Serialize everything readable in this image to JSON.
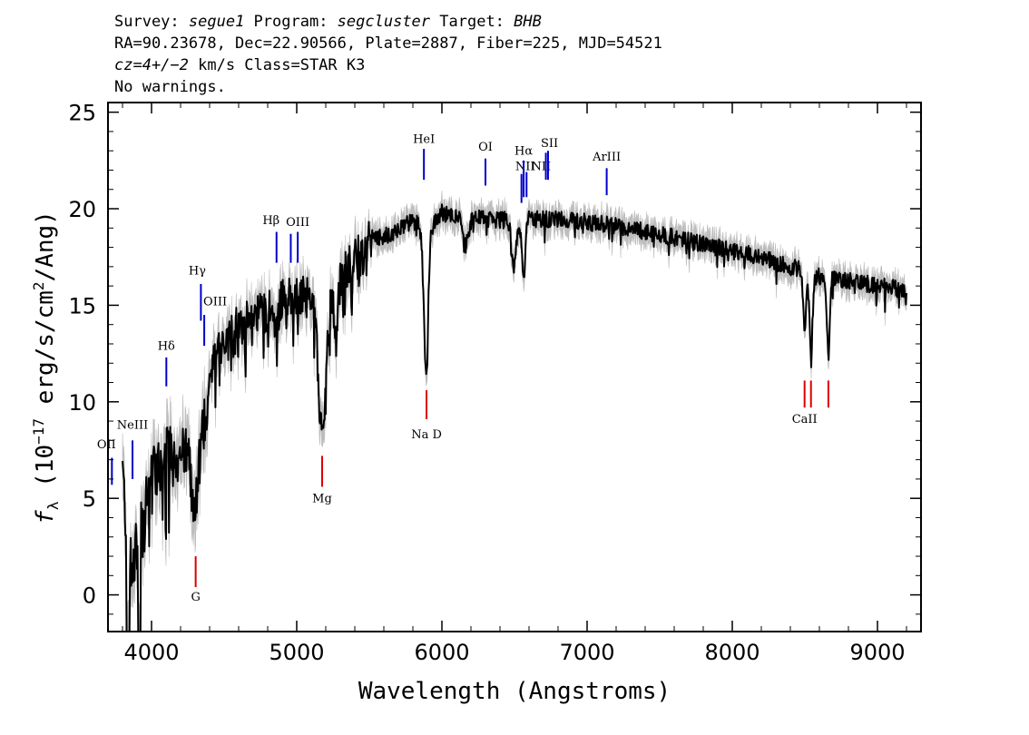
{
  "header": {
    "survey_label": "Survey: ",
    "survey": "segue1",
    "program_label": " Program: ",
    "program": "segcluster",
    "target_label": " Target: ",
    "target": "BHB",
    "coords": "RA=90.23678, Dec=22.90566, Plate=2887, Fiber=225, MJD=54521",
    "cz": "cz=4+/−2",
    "cz_rest": " km/s Class=STAR K3",
    "warnings": "No warnings."
  },
  "chart_data": {
    "type": "line",
    "xlabel": "Wavelength (Angstroms)",
    "ylabel_main": "f",
    "ylabel_sub": "λ",
    "ylabel_rest1": " (10",
    "ylabel_exp": "−17",
    "ylabel_rest2": " erg/s/cm",
    "ylabel_exp2": "2",
    "ylabel_rest3": "/Ang)",
    "xlim": [
      3700,
      9300
    ],
    "ylim": [
      -1.9,
      25.5
    ],
    "xticks": [
      4000,
      5000,
      6000,
      7000,
      8000,
      9000
    ],
    "yticks": [
      0,
      5,
      10,
      15,
      20,
      25
    ],
    "spectrum_x_range": [
      3800,
      9200
    ],
    "spectrum_anchors": [
      [
        3800,
        6.5
      ],
      [
        3830,
        3.0
      ],
      [
        3860,
        1.5
      ],
      [
        3900,
        2.5
      ],
      [
        3950,
        4.5
      ],
      [
        4000,
        6.0
      ],
      [
        4050,
        7.0
      ],
      [
        4100,
        7.3
      ],
      [
        4200,
        7.5
      ],
      [
        4300,
        7.2
      ],
      [
        4360,
        9.5
      ],
      [
        4400,
        11.5
      ],
      [
        4450,
        12.5
      ],
      [
        4500,
        13.5
      ],
      [
        4600,
        14.0
      ],
      [
        4700,
        14.5
      ],
      [
        4800,
        15.0
      ],
      [
        4900,
        15.5
      ],
      [
        5000,
        15.5
      ],
      [
        5100,
        15.5
      ],
      [
        5200,
        15.0
      ],
      [
        5300,
        16.5
      ],
      [
        5400,
        17.5
      ],
      [
        5500,
        18.5
      ],
      [
        5600,
        18.5
      ],
      [
        5700,
        19.0
      ],
      [
        5800,
        19.3
      ],
      [
        5900,
        19.0
      ],
      [
        6000,
        19.8
      ],
      [
        6200,
        19.5
      ],
      [
        6500,
        19.4
      ],
      [
        6700,
        19.5
      ],
      [
        7000,
        19.3
      ],
      [
        7300,
        19.0
      ],
      [
        7600,
        18.5
      ],
      [
        7900,
        18.0
      ],
      [
        8200,
        17.5
      ],
      [
        8400,
        17.0
      ],
      [
        8600,
        16.5
      ],
      [
        8800,
        16.3
      ],
      [
        9000,
        16.0
      ],
      [
        9200,
        15.8
      ]
    ],
    "absorption_dips": [
      [
        4300,
        2.5,
        25
      ],
      [
        4380,
        1.5,
        15
      ],
      [
        4860,
        1.5,
        15
      ],
      [
        5175,
        7.0,
        25
      ],
      [
        5270,
        2.0,
        15
      ],
      [
        5890,
        7.5,
        15
      ],
      [
        6160,
        1.5,
        20
      ],
      [
        6495,
        2.5,
        15
      ],
      [
        6563,
        3.0,
        12
      ],
      [
        8498,
        3.0,
        10
      ],
      [
        8542,
        4.5,
        10
      ],
      [
        8662,
        4.0,
        10
      ]
    ],
    "emission_lines": [
      {
        "label": "OII",
        "x": 3727,
        "y1": 5.7,
        "y2": 7.1,
        "label_y": 7.6,
        "label_dx": -6
      },
      {
        "label": "NeIII",
        "x": 3869,
        "y1": 6.0,
        "y2": 8.0,
        "label_y": 8.6,
        "label_dx": 0
      },
      {
        "label": "Hδ",
        "x": 4102,
        "y1": 10.8,
        "y2": 12.3,
        "label_y": 12.7,
        "label_dx": 0
      },
      {
        "label": "Hγ",
        "x": 4340,
        "y1": 14.2,
        "y2": 16.1,
        "label_y": 16.6,
        "label_dx": -4
      },
      {
        "label": "OIII",
        "x": 4363,
        "y1": 12.9,
        "y2": 14.5,
        "label_y": 15.0,
        "label_dx": 12
      },
      {
        "label": "Hβ",
        "x": 4861,
        "y1": 17.2,
        "y2": 18.8,
        "label_y": 19.2,
        "label_dx": -6
      },
      {
        "label": "OIII",
        "x": 4959,
        "y1": 17.2,
        "y2": 18.7,
        "label_y": 0,
        "label_dx": 0
      },
      {
        "label": "OIII",
        "x": 5007,
        "y1": 17.2,
        "y2": 18.8,
        "label_y": 19.1,
        "label_dx": 0
      },
      {
        "label": "HeI",
        "x": 5876,
        "y1": 21.5,
        "y2": 23.1,
        "label_y": 23.4,
        "label_dx": 0
      },
      {
        "label": "OI",
        "x": 6300,
        "y1": 21.2,
        "y2": 22.6,
        "label_y": 23.0,
        "label_dx": 0
      },
      {
        "label": "NII",
        "x": 6548,
        "y1": 20.3,
        "y2": 21.8,
        "label_y": 22.0,
        "label_dx": 4
      },
      {
        "label": "Hα",
        "x": 6563,
        "y1": 20.6,
        "y2": 22.5,
        "label_y": 22.8,
        "label_dx": 0
      },
      {
        "label": "NII",
        "x": 6583,
        "y1": 20.6,
        "y2": 21.9,
        "label_y": 22.0,
        "label_dx": 16
      },
      {
        "label": "SII",
        "x": 6716,
        "y1": 21.5,
        "y2": 22.9,
        "label_y": 23.2,
        "label_dx": 4
      },
      {
        "label": "SII",
        "x": 6731,
        "y1": 21.5,
        "y2": 23.0,
        "label_y": 0,
        "label_dx": 0
      },
      {
        "label": "ArIII",
        "x": 7135,
        "y1": 20.7,
        "y2": 22.1,
        "label_y": 22.5,
        "label_dx": 0
      }
    ],
    "absorption_lines": [
      {
        "label": "G",
        "x": 4304,
        "y1": 0.4,
        "y2": 2.0,
        "label_y": -0.3
      },
      {
        "label": "Mg",
        "x": 5175,
        "y1": 5.6,
        "y2": 7.2,
        "label_y": 4.8
      },
      {
        "label": "Na D",
        "x": 5894,
        "y1": 9.1,
        "y2": 10.6,
        "label_y": 8.1
      },
      {
        "label": "CaII",
        "x": 8498,
        "y1": 9.7,
        "y2": 11.1,
        "label_y": 8.9
      },
      {
        "label": "",
        "x": 8542,
        "y1": 9.7,
        "y2": 11.1,
        "label_y": 0
      },
      {
        "label": "",
        "x": 8662,
        "y1": 9.7,
        "y2": 11.1,
        "label_y": 0
      }
    ],
    "colors": {
      "spectrum": "#000000",
      "error_band": "#bdbdbd",
      "emission": "#0000cc",
      "absorption": "#dd0000"
    }
  }
}
